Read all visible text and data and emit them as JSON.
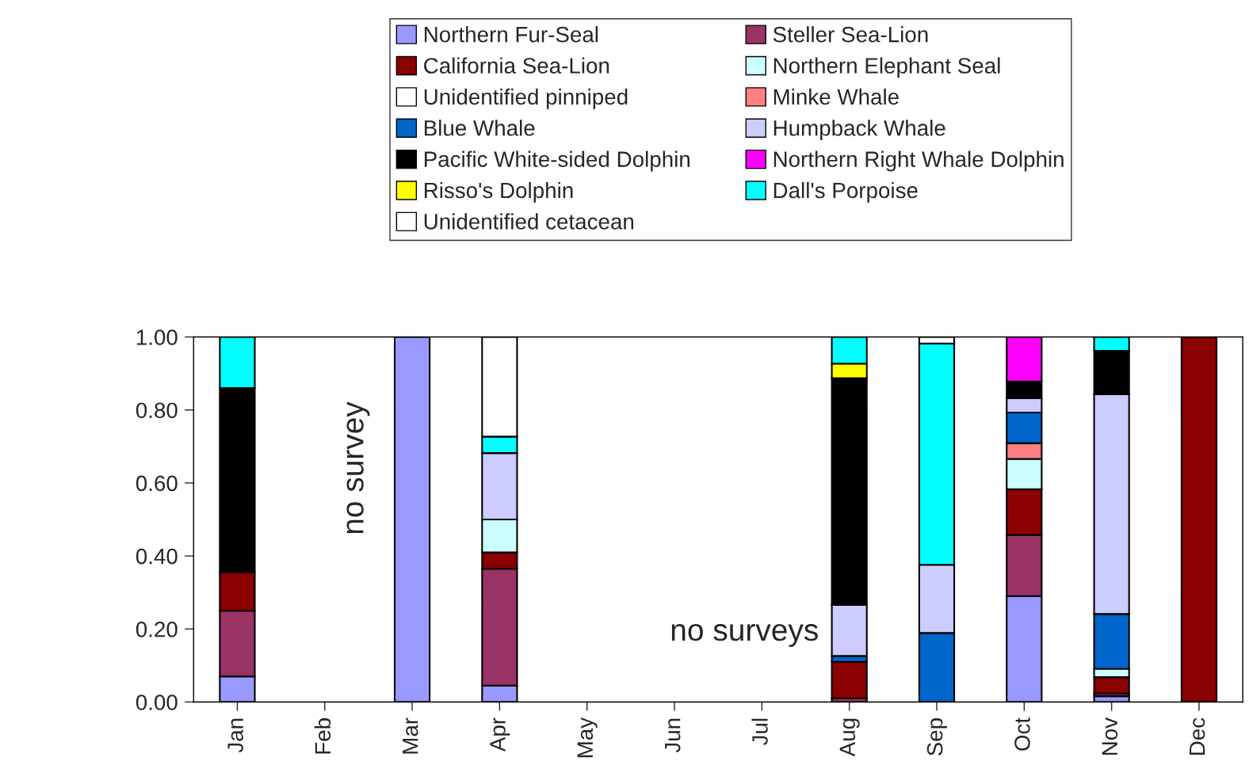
{
  "chart_data": {
    "type": "bar",
    "stacked": true,
    "categories": [
      "Jan",
      "Feb",
      "Mar",
      "Apr",
      "May",
      "Jun",
      "Jul",
      "Aug",
      "Sep",
      "Oct",
      "Nov",
      "Dec"
    ],
    "ylim": [
      0,
      1
    ],
    "yticks": [
      {
        "value": 0,
        "label": "0.00"
      },
      {
        "value": 0.2,
        "label": "0.20"
      },
      {
        "value": 0.4,
        "label": "0.40"
      },
      {
        "value": 0.6,
        "label": "0.60"
      },
      {
        "value": 0.8,
        "label": "0.80"
      },
      {
        "value": 1,
        "label": "1.00"
      }
    ],
    "grid": false,
    "legend": "top",
    "annotations": [
      "no survey",
      "no surveys"
    ],
    "series": [
      {
        "name": "Northern Fur-Seal",
        "color": "#9999ff",
        "values": [
          0.07,
          null,
          1.0,
          0.045,
          null,
          null,
          null,
          0,
          0,
          0.29,
          0.016,
          0
        ]
      },
      {
        "name": "Steller Sea-Lion",
        "color": "#993366",
        "values": [
          0.18,
          null,
          0,
          0.32,
          null,
          null,
          null,
          0.01,
          0,
          0.168,
          0.007,
          0
        ]
      },
      {
        "name": "California Sea-Lion",
        "color": "#8b0000",
        "values": [
          0.106,
          null,
          0,
          0.045,
          null,
          null,
          null,
          0.1,
          0,
          0.125,
          0.045,
          1.0
        ]
      },
      {
        "name": "Northern Elephant Seal",
        "color": "#ccffff",
        "values": [
          0,
          null,
          0,
          0.09,
          null,
          null,
          null,
          0,
          0,
          0.083,
          0.023,
          0
        ]
      },
      {
        "name": "Unidentified pinniped",
        "color": "#ffffff",
        "values": [
          0,
          null,
          0,
          0,
          null,
          null,
          null,
          0,
          0,
          0,
          0,
          0
        ]
      },
      {
        "name": "Minke Whale",
        "color": "#ff8080",
        "values": [
          0,
          null,
          0,
          0,
          null,
          null,
          null,
          0,
          0,
          0.043,
          0,
          0
        ]
      },
      {
        "name": "Blue Whale",
        "color": "#0066cc",
        "values": [
          0,
          null,
          0,
          0,
          null,
          null,
          null,
          0.016,
          0.189,
          0.084,
          0.15,
          0
        ]
      },
      {
        "name": "Humpback Whale",
        "color": "#ccccff",
        "values": [
          0,
          null,
          0,
          0.182,
          null,
          null,
          null,
          0.14,
          0.187,
          0.039,
          0.602,
          0
        ]
      },
      {
        "name": "Pacific White-sided Dolphin",
        "color": "#000000",
        "values": [
          0.504,
          null,
          0,
          0,
          null,
          null,
          null,
          0.621,
          0,
          0.046,
          0.119,
          0
        ]
      },
      {
        "name": "Northern Right Whale Dolphin",
        "color": "#ff00ff",
        "values": [
          0,
          null,
          0,
          0,
          null,
          null,
          null,
          0,
          0,
          0.122,
          0,
          0
        ]
      },
      {
        "name": "Risso's Dolphin",
        "color": "#ffff00",
        "values": [
          0,
          null,
          0,
          0,
          null,
          null,
          null,
          0.04,
          0,
          0,
          0,
          0
        ]
      },
      {
        "name": "Dall's Porpoise",
        "color": "#00ffff",
        "values": [
          0.14,
          null,
          0,
          0.045,
          null,
          null,
          null,
          0.073,
          0.606,
          0,
          0.038,
          0
        ]
      },
      {
        "name": "Unidentified cetacean",
        "color": "#ffffff",
        "values": [
          0,
          null,
          0,
          0.273,
          null,
          null,
          null,
          0,
          0.018,
          0,
          0,
          0
        ]
      }
    ]
  }
}
